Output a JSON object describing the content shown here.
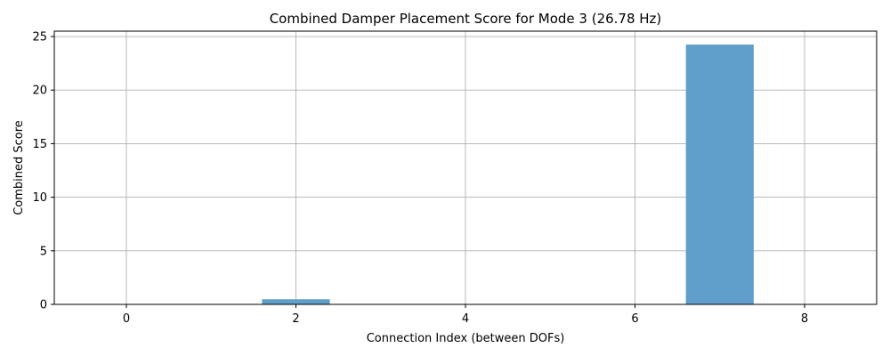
{
  "chart_data": {
    "type": "bar",
    "title": "Combined Damper Placement Score for Mode 3 (26.78 Hz)",
    "xlabel": "Connection Index (between DOFs)",
    "ylabel": "Combined Score",
    "x": [
      0,
      1,
      2,
      3,
      4,
      5,
      6,
      7,
      8
    ],
    "values": [
      0.0,
      0.0,
      0.48,
      0.0,
      0.0,
      0.0,
      0.0,
      24.25,
      0.0
    ],
    "xlim": [
      -0.85,
      8.85
    ],
    "ylim": [
      0,
      25.5
    ],
    "xticks": [
      0,
      2,
      4,
      6,
      8
    ],
    "yticks": [
      0,
      5,
      10,
      15,
      20,
      25
    ],
    "bar_color": "#609fcb",
    "grid": true,
    "legend": "none"
  }
}
